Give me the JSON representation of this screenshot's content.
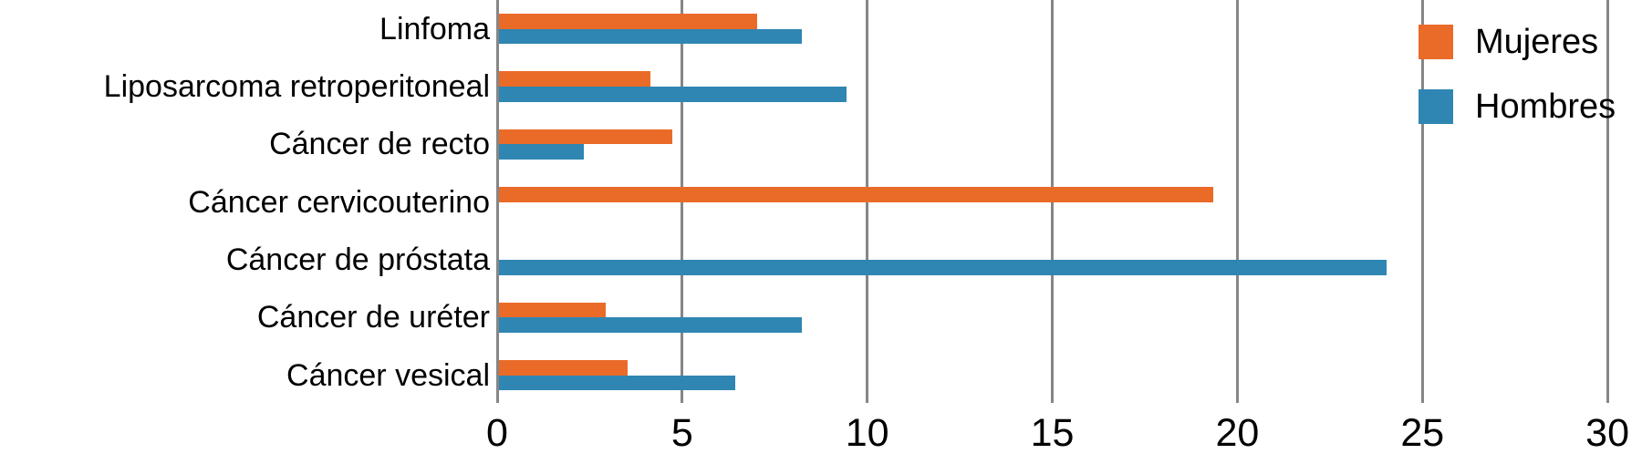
{
  "chart_data": {
    "type": "bar",
    "orientation": "horizontal",
    "title": "",
    "xlabel": "",
    "ylabel": "",
    "categories": [
      "Linfoma",
      "Liposarcoma retroperitoneal",
      "Cáncer de recto",
      "Cáncer cervicouterino",
      "Cáncer de próstata",
      "Cáncer de uréter",
      "Cáncer vesical"
    ],
    "series": [
      {
        "name": "Mujeres",
        "color": "#EA6B28",
        "values": [
          7.0,
          4.1,
          4.7,
          19.3,
          0,
          2.9,
          3.5
        ]
      },
      {
        "name": "Hombres",
        "color": "#2F86B2",
        "values": [
          8.2,
          9.4,
          2.3,
          0,
          24.0,
          8.2,
          6.4
        ]
      }
    ],
    "xlim": [
      0,
      30
    ],
    "x_ticks": [
      0,
      5,
      10,
      15,
      20,
      25,
      30
    ],
    "grid": true,
    "gridline_color": "#868686",
    "text_color": "#000000",
    "background": "#FFFFFF",
    "legend_position": "top-right"
  }
}
